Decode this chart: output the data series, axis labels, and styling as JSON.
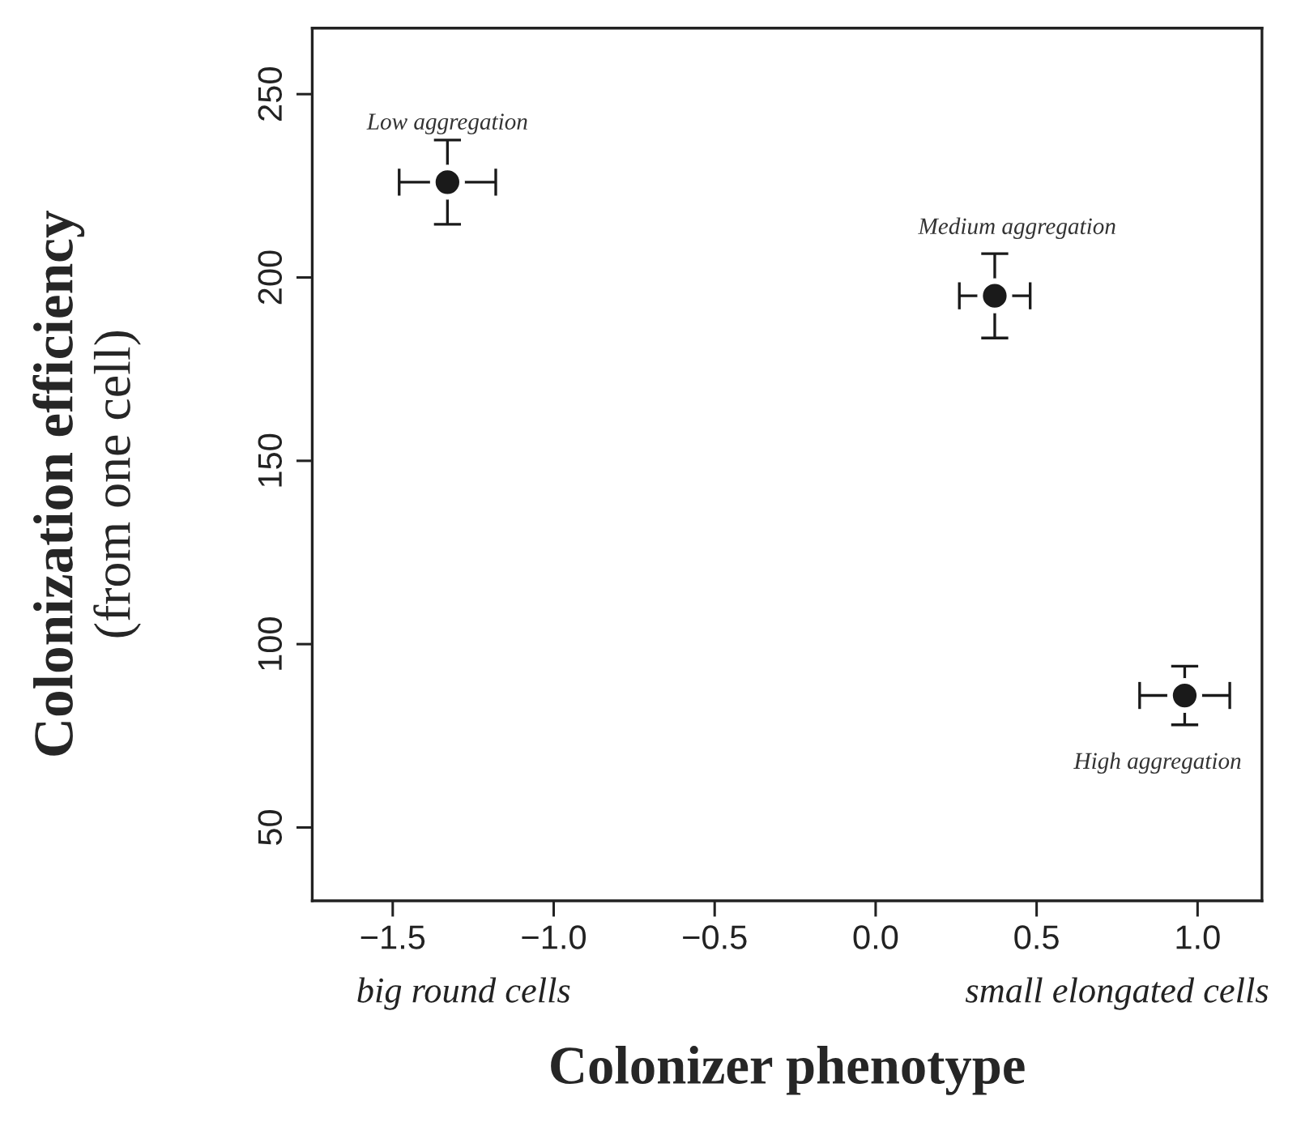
{
  "chart_data": {
    "type": "scatter",
    "xlabel": "Colonizer phenotype",
    "ylabel": "Colonization efficiency\n(from one cell)",
    "x": [
      -1.33,
      0.37,
      0.96
    ],
    "values": [
      226,
      195,
      86
    ],
    "errors": [
      11.5,
      11.5,
      8
    ],
    "xerrors": [
      0.15,
      0.11,
      0.14
    ],
    "color": "#1a1a1a",
    "marker": "circle",
    "xlim": [
      -1.75,
      1.2
    ],
    "ylim": [
      30,
      268
    ],
    "xticks": [
      {
        "value": -1.5,
        "label": "−1.5"
      },
      {
        "value": -1.0,
        "label": "−1.0"
      },
      {
        "value": -0.5,
        "label": "−0.5"
      },
      {
        "value": 0.0,
        "label": "0.0"
      },
      {
        "value": 0.5,
        "label": "0.5"
      },
      {
        "value": 1.0,
        "label": "1.0"
      }
    ],
    "yticks": [
      50,
      100,
      150,
      200,
      250
    ],
    "grid": false,
    "annotations": [
      "Low aggregation",
      "Medium aggregation",
      "High aggregation",
      "big round cells",
      "small elongated cells"
    ]
  }
}
